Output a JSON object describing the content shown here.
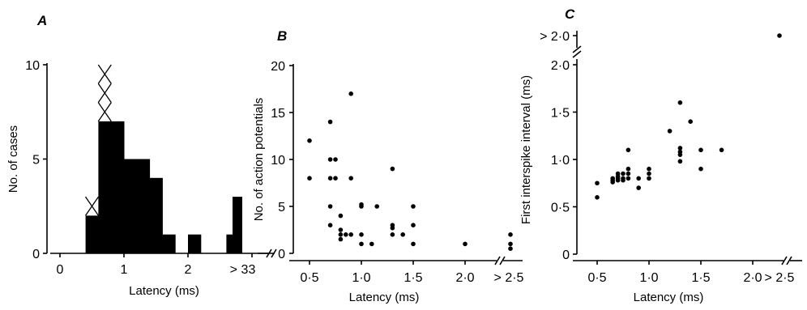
{
  "chart_data": [
    {
      "panel": "A",
      "type": "bar",
      "xlabel": "Latency (ms)",
      "ylabel": "No. of cases",
      "ylim": [
        0,
        10
      ],
      "xlim": [
        0,
        3
      ],
      "x_ticks": [
        "0",
        "1",
        "2",
        "3"
      ],
      "x_break_label": "> 3",
      "y_ticks": [
        "0",
        "5",
        "10"
      ],
      "bin_width": 0.2,
      "bins": [
        {
          "x0": 0.4,
          "value": 2
        },
        {
          "x0": 0.6,
          "value": 7
        },
        {
          "x0": 0.8,
          "value": 7
        },
        {
          "x0": 1.0,
          "value": 5
        },
        {
          "x0": 1.2,
          "value": 5
        },
        {
          "x0": 1.4,
          "value": 4
        },
        {
          "x0": 1.6,
          "value": 1
        },
        {
          "x0": 2.0,
          "value": 1
        },
        {
          "x0": 2.6,
          "value": 1
        }
      ],
      "overflow_bin": {
        "label": "> 3",
        "value": 3
      },
      "stacked_x_markers": [
        {
          "x": 0.5,
          "from": 2,
          "to": 3
        },
        {
          "x": 0.7,
          "from": 7,
          "to": 10
        }
      ]
    },
    {
      "panel": "B",
      "type": "scatter",
      "xlabel": "Latency (ms)",
      "ylabel": "No. of action potentials",
      "ylim": [
        0,
        20
      ],
      "xlim": [
        0.3,
        2.0
      ],
      "x_ticks": [
        "0·5",
        "1·0",
        "1·5",
        "2·0"
      ],
      "x_break_label": "> 2·5",
      "y_ticks": [
        "0",
        "5",
        "10",
        "15",
        "20"
      ],
      "points": [
        {
          "x": 0.5,
          "y": 12
        },
        {
          "x": 0.5,
          "y": 8
        },
        {
          "x": 0.7,
          "y": 14
        },
        {
          "x": 0.7,
          "y": 10
        },
        {
          "x": 0.7,
          "y": 8
        },
        {
          "x": 0.7,
          "y": 5
        },
        {
          "x": 0.7,
          "y": 3
        },
        {
          "x": 0.75,
          "y": 10
        },
        {
          "x": 0.75,
          "y": 8
        },
        {
          "x": 0.8,
          "y": 4
        },
        {
          "x": 0.8,
          "y": 2.5
        },
        {
          "x": 0.8,
          "y": 2
        },
        {
          "x": 0.8,
          "y": 1.5
        },
        {
          "x": 0.85,
          "y": 2
        },
        {
          "x": 0.9,
          "y": 17
        },
        {
          "x": 0.9,
          "y": 8
        },
        {
          "x": 0.9,
          "y": 2
        },
        {
          "x": 1.0,
          "y": 5.2
        },
        {
          "x": 1.0,
          "y": 5
        },
        {
          "x": 1.0,
          "y": 2
        },
        {
          "x": 1.0,
          "y": 1
        },
        {
          "x": 1.1,
          "y": 1
        },
        {
          "x": 1.15,
          "y": 5
        },
        {
          "x": 1.3,
          "y": 9
        },
        {
          "x": 1.3,
          "y": 3
        },
        {
          "x": 1.3,
          "y": 2.7
        },
        {
          "x": 1.3,
          "y": 2
        },
        {
          "x": 1.4,
          "y": 2
        },
        {
          "x": 1.5,
          "y": 5
        },
        {
          "x": 1.5,
          "y": 3
        },
        {
          "x": 1.5,
          "y": 1
        },
        {
          "x": 2.0,
          "y": 1
        }
      ],
      "break_points": [
        {
          "x": "> 2·5",
          "y": 2
        },
        {
          "x": "> 2·5",
          "y": 1
        },
        {
          "x": "> 2·5",
          "y": 0.5
        }
      ]
    },
    {
      "panel": "C",
      "type": "scatter",
      "xlabel": "Latency (ms)",
      "ylabel": "First interspike interval (ms)",
      "ylim": [
        0,
        2.0
      ],
      "xlim": [
        0.3,
        2.0
      ],
      "x_ticks": [
        "0·5",
        "1·0",
        "1·5",
        "2·0"
      ],
      "x_break_label": "> 2·5",
      "y_ticks": [
        "0",
        "0·5",
        "1·0",
        "1·5",
        "2·0"
      ],
      "y_break_label": "> 2·0",
      "points": [
        {
          "x": 0.5,
          "y": 0.75
        },
        {
          "x": 0.5,
          "y": 0.6
        },
        {
          "x": 0.65,
          "y": 0.8
        },
        {
          "x": 0.65,
          "y": 0.78
        },
        {
          "x": 0.65,
          "y": 0.76
        },
        {
          "x": 0.7,
          "y": 0.85
        },
        {
          "x": 0.7,
          "y": 0.82
        },
        {
          "x": 0.7,
          "y": 0.8
        },
        {
          "x": 0.7,
          "y": 0.78
        },
        {
          "x": 0.75,
          "y": 0.85
        },
        {
          "x": 0.75,
          "y": 0.8
        },
        {
          "x": 0.75,
          "y": 0.78
        },
        {
          "x": 0.8,
          "y": 1.1
        },
        {
          "x": 0.8,
          "y": 0.9
        },
        {
          "x": 0.8,
          "y": 0.85
        },
        {
          "x": 0.8,
          "y": 0.8
        },
        {
          "x": 0.9,
          "y": 0.8
        },
        {
          "x": 0.9,
          "y": 0.7
        },
        {
          "x": 1.0,
          "y": 0.9
        },
        {
          "x": 1.0,
          "y": 0.85
        },
        {
          "x": 1.0,
          "y": 0.8
        },
        {
          "x": 1.2,
          "y": 1.3
        },
        {
          "x": 1.3,
          "y": 1.6
        },
        {
          "x": 1.3,
          "y": 1.12
        },
        {
          "x": 1.3,
          "y": 1.08
        },
        {
          "x": 1.3,
          "y": 1.05
        },
        {
          "x": 1.3,
          "y": 0.98
        },
        {
          "x": 1.4,
          "y": 1.4
        },
        {
          "x": 1.5,
          "y": 1.1
        },
        {
          "x": 1.5,
          "y": 0.9
        },
        {
          "x": 1.7,
          "y": 1.1
        }
      ],
      "break_points": [
        {
          "x": "> 2·5",
          "y": "> 2·0"
        }
      ]
    }
  ]
}
